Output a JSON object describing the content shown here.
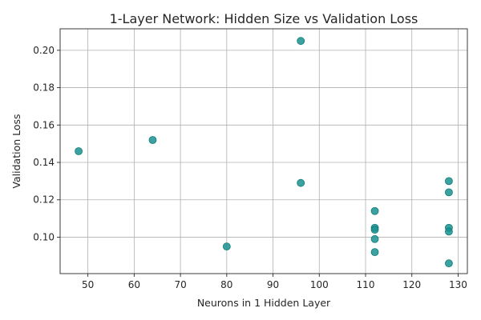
{
  "chart_data": {
    "type": "scatter",
    "title": "1-Layer Network: Hidden Size vs Validation Loss",
    "xlabel": "Neurons in 1 Hidden Layer",
    "ylabel": "Validation Loss",
    "xlim": [
      44,
      132
    ],
    "ylim": [
      0.0805,
      0.2115
    ],
    "x_ticks": [
      50,
      60,
      70,
      80,
      90,
      100,
      110,
      120,
      130
    ],
    "y_ticks": [
      0.1,
      0.12,
      0.14,
      0.16,
      0.18,
      0.2
    ],
    "x_tick_labels": [
      "50",
      "60",
      "70",
      "80",
      "90",
      "100",
      "110",
      "120",
      "130"
    ],
    "y_tick_labels": [
      "0.10",
      "0.12",
      "0.14",
      "0.16",
      "0.18",
      "0.20"
    ],
    "grid": true,
    "color": "#1a9290",
    "points": [
      {
        "x": 96,
        "y": 0.205
      },
      {
        "x": 64,
        "y": 0.152
      },
      {
        "x": 48,
        "y": 0.146
      },
      {
        "x": 128,
        "y": 0.13
      },
      {
        "x": 96,
        "y": 0.129
      },
      {
        "x": 128,
        "y": 0.124
      },
      {
        "x": 112,
        "y": 0.114
      },
      {
        "x": 112,
        "y": 0.105
      },
      {
        "x": 112,
        "y": 0.104
      },
      {
        "x": 128,
        "y": 0.105
      },
      {
        "x": 128,
        "y": 0.103
      },
      {
        "x": 112,
        "y": 0.099
      },
      {
        "x": 80,
        "y": 0.095
      },
      {
        "x": 112,
        "y": 0.092
      },
      {
        "x": 128,
        "y": 0.086
      }
    ]
  }
}
